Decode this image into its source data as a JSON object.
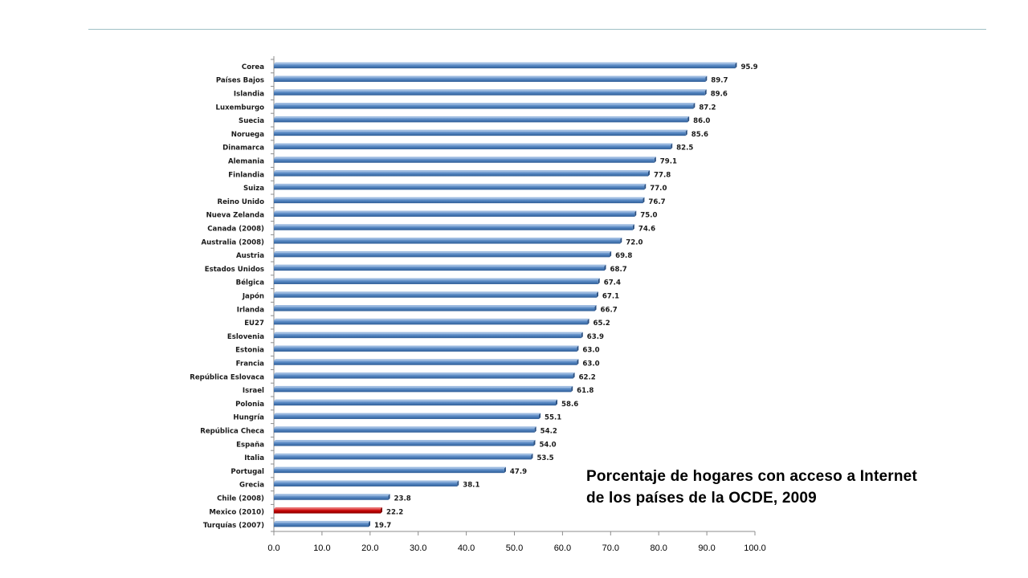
{
  "caption": {
    "line1": "Porcentaje de hogares con acceso a Internet",
    "line2": "de los países de la OCDE, 2009"
  },
  "colors": {
    "bar": "#4f81bd",
    "highlight": "#c00000",
    "rule": "#9fc1c6"
  },
  "chart_data": {
    "type": "bar",
    "orientation": "horizontal",
    "categories": [
      "Corea",
      "Países Bajos",
      "Islandia",
      "Luxemburgo",
      "Suecia",
      "Noruega",
      "Dinamarca",
      "Alemania",
      "Finlandia",
      "Suiza",
      "Reino Unido",
      "Nueva Zelanda",
      "Canada (2008)",
      "Australia (2008)",
      "Austria",
      "Estados Unidos",
      "Bélgica",
      "Japón",
      "Irlanda",
      "EU27",
      "Eslovenia",
      "Estonia",
      "Francia",
      "República Eslovaca",
      "Israel",
      "Polonia",
      "Hungría",
      "República Checa",
      "España",
      "Italia",
      "Portugal",
      "Grecia",
      "Chile (2008)",
      "Mexico (2010)",
      "Turquías (2007)"
    ],
    "values": [
      95.9,
      89.7,
      89.6,
      87.2,
      86.0,
      85.6,
      82.5,
      79.1,
      77.8,
      77.0,
      76.7,
      75.0,
      74.6,
      72.0,
      69.8,
      68.7,
      67.4,
      67.1,
      66.7,
      65.2,
      63.9,
      63.0,
      63.0,
      62.2,
      61.8,
      58.6,
      55.1,
      54.2,
      54.0,
      53.5,
      47.9,
      38.1,
      23.8,
      22.2,
      19.7
    ],
    "value_labels": [
      "95.9",
      "89.7",
      "89.6",
      "87.2",
      "86.0",
      "85.6",
      "82.5",
      "79.1",
      "77.8",
      "77.0",
      "76.7",
      "75.0",
      "74.6",
      "72.0",
      "69.8",
      "68.7",
      "67.4",
      "67.1",
      "66.7",
      "65.2",
      "63.9",
      "63.0",
      "63.0",
      "62.2",
      "61.8",
      "58.6",
      "55.1",
      "54.2",
      "54.0",
      "53.5",
      "47.9",
      "38.1",
      "23.8",
      "22.2",
      "19.7"
    ],
    "highlight_category": "Mexico (2010)",
    "xlim": [
      0,
      100
    ],
    "xticks": [
      "0.0",
      "10.0",
      "20.0",
      "30.0",
      "40.0",
      "50.0",
      "60.0",
      "70.0",
      "80.0",
      "90.0",
      "100.0"
    ],
    "grid": false,
    "legend": "none"
  }
}
